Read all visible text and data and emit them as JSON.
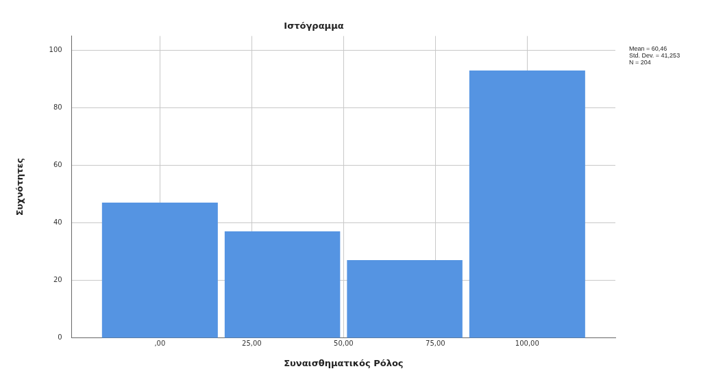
{
  "chart_data": {
    "type": "histogram",
    "title": "Ιστόγραμμα",
    "xlabel": "Συναισθηματικός Ρόλος",
    "ylabel": "Συχνότητες",
    "bins": [
      -16.7,
      16.7,
      50,
      83.3,
      116.7
    ],
    "values": [
      47,
      37,
      27,
      93
    ],
    "color": "#5594e2",
    "xlim": [
      -24,
      124
    ],
    "xticks": [
      {
        "value": 0,
        "label": ",00"
      },
      {
        "value": 25,
        "label": "25,00"
      },
      {
        "value": 50,
        "label": "50,00"
      },
      {
        "value": 75,
        "label": "75,00"
      },
      {
        "value": 100,
        "label": "100,00"
      }
    ],
    "ylim": [
      0,
      105
    ],
    "yticks": [
      0,
      20,
      40,
      60,
      80,
      100
    ],
    "grid": true,
    "annotations": [
      "Mean = 60,46",
      "Std. Dev. = 41,253",
      "N = 204"
    ]
  }
}
